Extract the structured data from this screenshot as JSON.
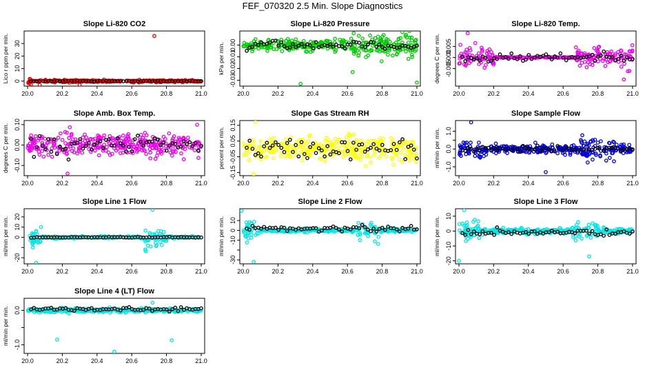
{
  "figure_title": "FEF_070320  2.5 Min. Slope Diagnostics",
  "chart_data": [
    {
      "type": "scatter",
      "title": "Slope Li-820 CO2",
      "ylabel": "Lico r ppm per min.",
      "color": "#ee0000",
      "xlim": [
        19.98,
        21.02
      ],
      "ylim": [
        -4,
        40
      ],
      "xticks": [
        "20.0",
        "20.2",
        "20.4",
        "20.6",
        "20.8",
        "21.0"
      ],
      "yticks": [
        0,
        10,
        20,
        30
      ],
      "ytick_labels": [
        "0",
        "10",
        "20",
        "30"
      ],
      "noise": {
        "base": 0.7,
        "high": 2.5,
        "zones": [
          [
            20.0,
            20.02
          ]
        ]
      },
      "mean_black": 0.0,
      "black_spread": 0.3,
      "outliers": [
        [
          20.73,
          36
        ],
        [
          20.07,
          -3
        ],
        [
          20.3,
          -3
        ]
      ]
    },
    {
      "type": "scatter",
      "title": "Slope Li-820 Pressure",
      "ylabel": "kPa per min.",
      "color": "#00cc00",
      "xlim": [
        19.98,
        21.02
      ],
      "ylim": [
        -0.035,
        0.012
      ],
      "xticks": [
        "20.0",
        "20.2",
        "20.4",
        "20.6",
        "20.8",
        "21.0"
      ],
      "yticks": [
        -0.03,
        -0.02,
        -0.01,
        0.0
      ],
      "ytick_labels": [
        "-0.03",
        "-0.02",
        "-0.01",
        "0.00"
      ],
      "noise": {
        "base": 0.004,
        "high": 0.009,
        "zones": [
          [
            20.6,
            21.0
          ]
        ]
      },
      "mean_black": 0.0,
      "black_spread": 0.003,
      "outliers": [
        [
          20.33,
          -0.033
        ],
        [
          21.0,
          -0.032
        ],
        [
          20.63,
          -0.023
        ]
      ]
    },
    {
      "type": "scatter",
      "title": "Slope Li-820 Temp.",
      "ylabel": "degrees C per min.",
      "color": "#ee00ee",
      "xlim": [
        19.98,
        21.02
      ],
      "ylim": [
        -0.013,
        0.012
      ],
      "xticks": [
        "20.0",
        "20.2",
        "20.4",
        "20.6",
        "20.8",
        "21.0"
      ],
      "yticks": [
        -0.005,
        0.0,
        0.005
      ],
      "ytick_labels": [
        "-0.005",
        "0.000",
        "0.005"
      ],
      "noise": {
        "base": 0.0002,
        "high": 0.004,
        "zones": [
          [
            19.98,
            20.2
          ],
          [
            20.67,
            21.0
          ]
        ]
      },
      "mean_black": 0.0,
      "black_spread": 0.002,
      "outliers": [
        [
          20.05,
          0.011
        ],
        [
          20.95,
          -0.01
        ]
      ]
    },
    {
      "type": "scatter",
      "title": "Slope Amb. Box Temp.",
      "ylabel": "degrees C per min.",
      "color": "#ee00ee",
      "xlim": [
        19.98,
        21.02
      ],
      "ylim": [
        -0.15,
        0.12
      ],
      "xticks": [
        "20.0",
        "20.2",
        "20.4",
        "20.6",
        "20.8",
        "21.0"
      ],
      "yticks": [
        -0.1,
        0.0,
        0.1
      ],
      "ytick_labels": [
        "-0.10",
        "0.00",
        "0.10"
      ],
      "noise": {
        "base": 0.05,
        "high": 0.05,
        "zones": []
      },
      "mean_black": 0.0,
      "black_spread": 0.045,
      "outliers": [
        [
          20.23,
          -0.14
        ]
      ]
    },
    {
      "type": "scatter",
      "title": "Slope Gas Stream RH",
      "ylabel": "percent per min.",
      "color": "#ffff00",
      "xlim": [
        19.98,
        21.02
      ],
      "ylim": [
        -0.17,
        0.18
      ],
      "xticks": [
        "20.0",
        "20.2",
        "20.4",
        "20.6",
        "20.8",
        "21.0"
      ],
      "yticks": [
        -0.15,
        -0.05,
        0.05,
        0.15
      ],
      "ytick_labels": [
        "-0.15",
        "-0.05",
        "0.05",
        "0.15"
      ],
      "noise": {
        "base": 0.07,
        "high": 0.07,
        "zones": []
      },
      "mean_black": 0.0,
      "black_spread": 0.06,
      "outliers": [
        [
          20.07,
          0.17
        ],
        [
          20.06,
          -0.16
        ]
      ]
    },
    {
      "type": "scatter",
      "title": "Slope Sample Flow",
      "ylabel": "ml/min per min.",
      "color": "#0000dd",
      "xlim": [
        19.98,
        21.02
      ],
      "ylim": [
        -1.5,
        1.6
      ],
      "xticks": [
        "20.0",
        "20.2",
        "20.4",
        "20.6",
        "20.8",
        "21.0"
      ],
      "yticks": [
        -1.0,
        -0.5,
        0.0,
        0.5,
        1.0
      ],
      "ytick_labels": [
        "-1.0",
        "",
        "0.0",
        "",
        "1.0"
      ],
      "noise": {
        "base": 0.2,
        "high": 0.5,
        "zones": [
          [
            19.98,
            20.15
          ],
          [
            20.68,
            20.9
          ]
        ]
      },
      "mean_black": 0.0,
      "black_spread": 0.15,
      "outliers": [
        [
          20.07,
          1.5
        ],
        [
          20.5,
          -1.3
        ]
      ]
    },
    {
      "type": "scatter",
      "title": "Slope Line 1 Flow",
      "ylabel": "ml/min per min.",
      "color": "#00e5e5",
      "xlim": [
        19.98,
        21.02
      ],
      "ylim": [
        -26,
        28
      ],
      "xticks": [
        "20.0",
        "20.2",
        "20.4",
        "20.6",
        "20.8",
        "21.0"
      ],
      "yticks": [
        -20,
        -10,
        0,
        10,
        20
      ],
      "ytick_labels": [
        "-20",
        "",
        "0",
        "10",
        "20"
      ],
      "noise": {
        "base": 1.0,
        "high": 9,
        "zones": [
          [
            19.98,
            20.08
          ],
          [
            20.67,
            20.8
          ]
        ]
      },
      "mean_black": 0.0,
      "black_spread": 0.4,
      "outliers": [
        [
          20.72,
          27
        ],
        [
          20.05,
          -25
        ]
      ]
    },
    {
      "type": "scatter",
      "title": "Slope Line 2 Flow",
      "ylabel": "ml/min per min.",
      "color": "#00e5e5",
      "xlim": [
        19.98,
        21.02
      ],
      "ylim": [
        -34,
        22
      ],
      "xticks": [
        "20.0",
        "20.2",
        "20.4",
        "20.6",
        "20.8",
        "21.0"
      ],
      "yticks": [
        -30,
        -20,
        -10,
        0,
        10
      ],
      "ytick_labels": [
        "-30",
        "",
        "-10",
        "0",
        "10"
      ],
      "noise": {
        "base": 1.5,
        "high": 10,
        "zones": [
          [
            19.98,
            20.1
          ],
          [
            20.66,
            20.78
          ]
        ]
      },
      "mean_black": 2.0,
      "black_spread": 3,
      "outliers": [
        [
          20.06,
          -32
        ],
        [
          19.99,
          20
        ]
      ]
    },
    {
      "type": "scatter",
      "title": "Slope Line 3 Flow",
      "ylabel": "ml/min per min.",
      "color": "#00e5e5",
      "xlim": [
        19.98,
        21.02
      ],
      "ylim": [
        -22,
        15
      ],
      "xticks": [
        "20.0",
        "20.2",
        "20.4",
        "20.6",
        "20.8",
        "21.0"
      ],
      "yticks": [
        -20,
        -10,
        0,
        10
      ],
      "ytick_labels": [
        "-20",
        "-10",
        "0",
        "10"
      ],
      "noise": {
        "base": 1.5,
        "high": 6,
        "zones": [
          [
            19.98,
            20.12
          ],
          [
            20.65,
            20.8
          ]
        ]
      },
      "mean_black": -1.0,
      "black_spread": 2,
      "outliers": [
        [
          20.03,
          14
        ],
        [
          20.75,
          -17
        ],
        [
          20.0,
          -20
        ]
      ]
    },
    {
      "type": "scatter",
      "title": "Slope Line 4 (LT) Flow",
      "ylabel": "ml/min per min.",
      "color": "#00e5e5",
      "xlim": [
        19.98,
        21.02
      ],
      "ylim": [
        -1.25,
        0.35
      ],
      "xticks": [
        "20.0",
        "20.2",
        "20.4",
        "20.6",
        "20.8",
        "21.0"
      ],
      "yticks": [
        -1.0,
        -0.5,
        0.0
      ],
      "ytick_labels": [
        "-1.0",
        "",
        "0.0"
      ],
      "noise": {
        "base": 0.05,
        "high": 0.05,
        "zones": []
      },
      "mean_black": 0.03,
      "black_spread": 0.05,
      "outliers": [
        [
          20.17,
          -0.85
        ],
        [
          20.5,
          -1.2
        ],
        [
          20.83,
          -0.87
        ],
        [
          20.72,
          0.22
        ]
      ]
    }
  ]
}
